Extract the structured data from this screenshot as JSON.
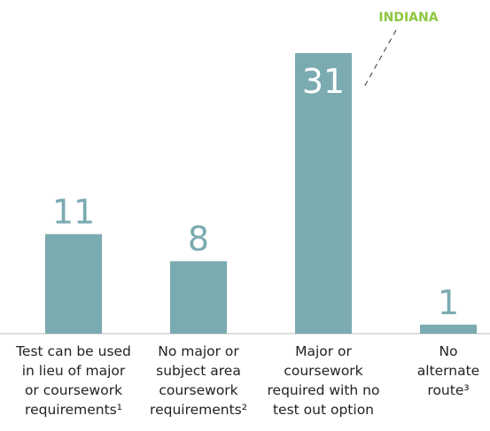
{
  "chart_data": {
    "type": "bar",
    "categories": [
      "Test can be used\nin lieu of major\nor coursework\nrequirements¹",
      "No major or\nsubject area\ncoursework\nrequirements²",
      "Major or\ncoursework\nrequired with no\ntest out option",
      "No\nalternate\nroute³"
    ],
    "values": [
      11,
      8,
      31,
      1
    ],
    "color": "#7aabb0",
    "annotation": {
      "text": "INDIANA",
      "category_index": 2,
      "color": "#8dc63f"
    }
  }
}
